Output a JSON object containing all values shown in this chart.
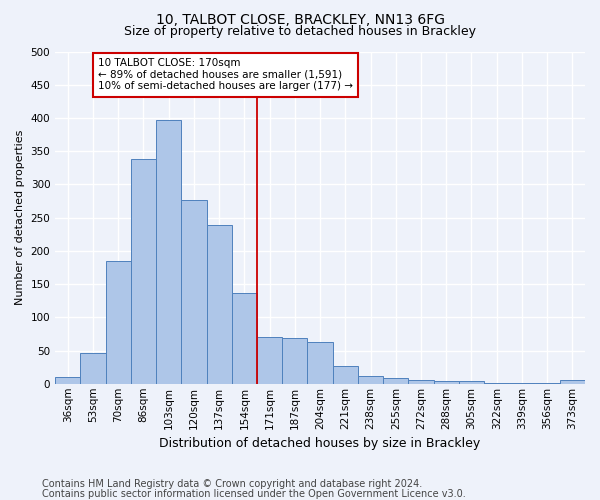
{
  "title1": "10, TALBOT CLOSE, BRACKLEY, NN13 6FG",
  "title2": "Size of property relative to detached houses in Brackley",
  "xlabel": "Distribution of detached houses by size in Brackley",
  "ylabel": "Number of detached properties",
  "categories": [
    "36sqm",
    "53sqm",
    "70sqm",
    "86sqm",
    "103sqm",
    "120sqm",
    "137sqm",
    "154sqm",
    "171sqm",
    "187sqm",
    "204sqm",
    "221sqm",
    "238sqm",
    "255sqm",
    "272sqm",
    "288sqm",
    "305sqm",
    "322sqm",
    "339sqm",
    "356sqm",
    "373sqm"
  ],
  "values": [
    10,
    47,
    185,
    338,
    397,
    276,
    239,
    137,
    70,
    69,
    63,
    26,
    12,
    9,
    5,
    4,
    4,
    1,
    1,
    1,
    5
  ],
  "bar_color": "#aec6e8",
  "bar_edge_color": "#4f81bd",
  "vline_x_index": 8,
  "vline_color": "#cc0000",
  "annotation_text": "10 TALBOT CLOSE: 170sqm\n← 89% of detached houses are smaller (1,591)\n10% of semi-detached houses are larger (177) →",
  "annotation_box_facecolor": "#ffffff",
  "annotation_box_edgecolor": "#cc0000",
  "footer1": "Contains HM Land Registry data © Crown copyright and database right 2024.",
  "footer2": "Contains public sector information licensed under the Open Government Licence v3.0.",
  "ylim_max": 500,
  "background_color": "#eef2fa",
  "grid_color": "#ffffff",
  "title1_fontsize": 10,
  "title2_fontsize": 9,
  "xlabel_fontsize": 9,
  "ylabel_fontsize": 8,
  "tick_fontsize": 7.5,
  "annotation_fontsize": 7.5,
  "footer_fontsize": 7
}
